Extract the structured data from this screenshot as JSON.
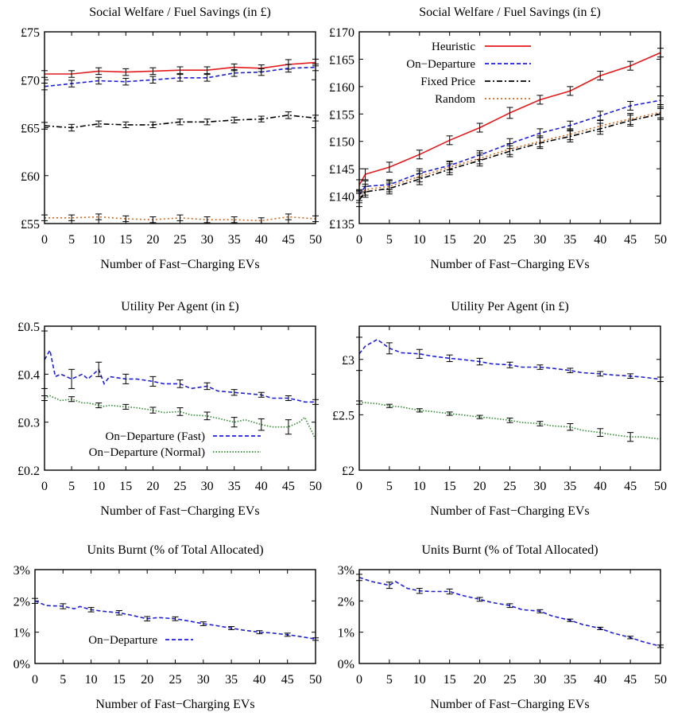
{
  "colors": {
    "heuristic": "#e41a1c",
    "on_departure": "#1f1fd6",
    "fixed_price": "#000000",
    "random": "#d2691e",
    "normal": "#2e8b2e"
  },
  "chart_data": [
    {
      "type": "line",
      "title": "Social Welfare / Fuel Savings (in £)",
      "xlabel": "Number of Fast−Charging EVs",
      "ylabel": "",
      "xlim": [
        0,
        50
      ],
      "ylim": [
        55,
        75
      ],
      "xticks": [
        0,
        5,
        10,
        15,
        20,
        25,
        30,
        35,
        40,
        45,
        50
      ],
      "yticks": [
        {
          "v": 55,
          "label": "£55"
        },
        {
          "v": 60,
          "label": "£60"
        },
        {
          "v": 65,
          "label": "£65"
        },
        {
          "v": 70,
          "label": "£70"
        },
        {
          "v": 75,
          "label": "£75"
        }
      ],
      "x": [
        0,
        5,
        10,
        15,
        20,
        25,
        30,
        35,
        40,
        45,
        50
      ],
      "series": [
        {
          "name": "Heuristic",
          "color": "#e41a1c",
          "dash": "",
          "values": [
            70.6,
            70.6,
            70.9,
            70.8,
            70.9,
            71.0,
            71.0,
            71.3,
            71.2,
            71.6,
            71.8
          ],
          "err": [
            0.35,
            0.35,
            0.35,
            0.35,
            0.35,
            0.35,
            0.35,
            0.35,
            0.35,
            0.5,
            0.35
          ]
        },
        {
          "name": "On−Departure",
          "color": "#1f1fd6",
          "dash": "5,3",
          "values": [
            69.3,
            69.6,
            69.9,
            69.8,
            70.0,
            70.2,
            70.2,
            70.7,
            70.8,
            71.2,
            71.3
          ],
          "err": [
            0.35,
            0.35,
            0.35,
            0.35,
            0.35,
            0.35,
            0.35,
            0.35,
            0.35,
            0.4,
            0.35
          ]
        },
        {
          "name": "Fixed Price",
          "color": "#000000",
          "dash": "7,3,2,3",
          "values": [
            65.2,
            65.0,
            65.4,
            65.3,
            65.3,
            65.6,
            65.6,
            65.8,
            65.9,
            66.3,
            66.0
          ],
          "err": [
            0.35,
            0.35,
            0.3,
            0.3,
            0.3,
            0.3,
            0.3,
            0.3,
            0.3,
            0.35,
            0.3
          ]
        },
        {
          "name": "Random",
          "color": "#d2691e",
          "dash": "2,3",
          "values": [
            55.6,
            55.6,
            55.7,
            55.5,
            55.4,
            55.6,
            55.4,
            55.4,
            55.3,
            55.7,
            55.5
          ],
          "err": [
            0.3,
            0.3,
            0.3,
            0.3,
            0.3,
            0.3,
            0.3,
            0.3,
            0.3,
            0.3,
            0.3
          ]
        }
      ],
      "legend": false
    },
    {
      "type": "line",
      "title": "Social Welfare / Fuel Savings (in £)",
      "xlabel": "Number of Fast−Charging EVs",
      "ylabel": "",
      "xlim": [
        0,
        50
      ],
      "ylim": [
        135,
        170
      ],
      "xticks": [
        0,
        5,
        10,
        15,
        20,
        25,
        30,
        35,
        40,
        45,
        50
      ],
      "yticks": [
        {
          "v": 135,
          "label": "£135"
        },
        {
          "v": 140,
          "label": "£140"
        },
        {
          "v": 145,
          "label": "£145"
        },
        {
          "v": 150,
          "label": "£150"
        },
        {
          "v": 155,
          "label": "£155"
        },
        {
          "v": 160,
          "label": "£160"
        },
        {
          "v": 165,
          "label": "£165"
        },
        {
          "v": 170,
          "label": "£170"
        }
      ],
      "x": [
        0,
        1,
        5,
        10,
        15,
        20,
        25,
        30,
        35,
        40,
        45,
        50
      ],
      "series": [
        {
          "name": "Heuristic",
          "color": "#e41a1c",
          "dash": "",
          "values": [
            142.0,
            144.0,
            145.3,
            147.6,
            150.2,
            152.5,
            155.2,
            157.6,
            159.2,
            162.0,
            163.8,
            166.2
          ],
          "err": [
            1.0,
            1.0,
            0.9,
            0.8,
            0.8,
            0.8,
            1.0,
            0.8,
            0.8,
            0.8,
            0.8,
            0.8
          ]
        },
        {
          "name": "On−Departure",
          "color": "#1f1fd6",
          "dash": "5,3",
          "values": [
            140.2,
            141.8,
            142.1,
            144.2,
            145.6,
            147.5,
            149.6,
            151.5,
            152.9,
            154.7,
            156.5,
            157.5
          ],
          "err": [
            1.0,
            1.0,
            0.9,
            0.8,
            0.8,
            0.8,
            0.9,
            0.8,
            0.8,
            0.8,
            0.8,
            0.8
          ]
        },
        {
          "name": "Fixed Price",
          "color": "#000000",
          "dash": "7,3,2,3",
          "values": [
            139.3,
            140.8,
            141.4,
            143.1,
            144.9,
            146.5,
            148.2,
            149.7,
            150.9,
            152.3,
            153.8,
            155.0
          ],
          "err": [
            1.2,
            1.0,
            1.0,
            1.0,
            1.0,
            1.0,
            1.0,
            1.0,
            1.0,
            1.0,
            1.0,
            1.0
          ]
        },
        {
          "name": "Random",
          "color": "#d2691e",
          "dash": "2,3",
          "values": [
            139.8,
            141.2,
            141.8,
            143.6,
            145.3,
            146.9,
            148.6,
            150.0,
            151.3,
            152.8,
            154.1,
            155.3
          ],
          "err": [
            1.0,
            1.0,
            1.0,
            1.0,
            1.0,
            1.0,
            1.0,
            1.0,
            1.0,
            1.0,
            1.0,
            1.0
          ]
        }
      ],
      "legend": true,
      "legend_position": "top-left",
      "legend_entries": [
        "Heuristic",
        "On−Departure",
        "Fixed Price",
        "Random"
      ]
    },
    {
      "type": "line",
      "title": "Utility Per Agent (in £)",
      "xlabel": "Number of Fast−Charging EVs",
      "ylabel": "",
      "xlim": [
        0,
        50
      ],
      "ylim": [
        0.2,
        0.5
      ],
      "xticks": [
        0,
        5,
        10,
        15,
        20,
        25,
        30,
        35,
        40,
        45,
        50
      ],
      "yticks": [
        {
          "v": 0.2,
          "label": "£0.2"
        },
        {
          "v": 0.3,
          "label": "£0.3"
        },
        {
          "v": 0.4,
          "label": "£0.4"
        },
        {
          "v": 0.5,
          "label": "£0.5"
        }
      ],
      "x": [
        0,
        1,
        2,
        3,
        5,
        7,
        8,
        10,
        11,
        12,
        15,
        17,
        20,
        22,
        25,
        27,
        30,
        32,
        35,
        37,
        40,
        42,
        45,
        47,
        48,
        50
      ],
      "series": [
        {
          "name": "On−Departure (Fast)",
          "color": "#1f1fd6",
          "dash": "5,3",
          "values": [
            0.43,
            0.45,
            0.395,
            0.4,
            0.39,
            0.4,
            0.39,
            0.41,
            0.38,
            0.395,
            0.39,
            0.39,
            0.385,
            0.38,
            0.38,
            0.37,
            0.375,
            0.365,
            0.362,
            0.36,
            0.357,
            0.35,
            0.35,
            0.345,
            0.342,
            0.342
          ],
          "err": [
            0.06,
            0.0,
            0.0,
            0.0,
            0.02,
            0.0,
            0.0,
            0.015,
            0.0,
            0.0,
            0.01,
            0.0,
            0.01,
            0.0,
            0.008,
            0.0,
            0.007,
            0.0,
            0.006,
            0.0,
            0.005,
            0.0,
            0.005,
            0.0,
            0.0,
            0.005
          ]
        },
        {
          "name": "On−Departure (Normal)",
          "color": "#2e8b2e",
          "dash": "1.5,2",
          "values": [
            0.35,
            0.355,
            0.35,
            0.345,
            0.348,
            0.34,
            0.34,
            0.335,
            0.333,
            0.335,
            0.332,
            0.33,
            0.325,
            0.32,
            0.322,
            0.315,
            0.313,
            0.308,
            0.3,
            0.305,
            0.295,
            0.29,
            0.29,
            0.3,
            0.31,
            0.265
          ],
          "err": [
            0.005,
            0.0,
            0.0,
            0.0,
            0.005,
            0.0,
            0.0,
            0.005,
            0.0,
            0.0,
            0.005,
            0.0,
            0.006,
            0.0,
            0.008,
            0.0,
            0.008,
            0.0,
            0.01,
            0.0,
            0.012,
            0.0,
            0.015,
            0.0,
            0.0,
            0.0
          ]
        }
      ],
      "legend": true,
      "legend_position": "bottom-left",
      "legend_entries": [
        "On−Departure (Fast)",
        "On−Departure (Normal)"
      ]
    },
    {
      "type": "line",
      "title": "Utility Per Agent (in £)",
      "xlabel": "Number of Fast−Charging EVs",
      "ylabel": "",
      "xlim": [
        0,
        50
      ],
      "ylim": [
        2,
        3.3
      ],
      "xticks": [
        0,
        5,
        10,
        15,
        20,
        25,
        30,
        35,
        40,
        45,
        50
      ],
      "yticks": [
        {
          "v": 2,
          "label": "£2"
        },
        {
          "v": 2.5,
          "label": "£2.5"
        },
        {
          "v": 3,
          "label": "£3"
        }
      ],
      "x": [
        0,
        1,
        3,
        5,
        7,
        10,
        12,
        15,
        17,
        20,
        22,
        25,
        27,
        30,
        32,
        35,
        37,
        40,
        42,
        45,
        47,
        50
      ],
      "series": [
        {
          "name": "On−Departure (Fast)",
          "color": "#1f1fd6",
          "dash": "5,3",
          "values": [
            3.05,
            3.12,
            3.18,
            3.1,
            3.06,
            3.05,
            3.03,
            3.01,
            3.0,
            2.98,
            2.96,
            2.95,
            2.93,
            2.93,
            2.92,
            2.9,
            2.88,
            2.87,
            2.86,
            2.85,
            2.84,
            2.82
          ],
          "err": [
            0.15,
            0.0,
            0.0,
            0.05,
            0.0,
            0.04,
            0.0,
            0.03,
            0.0,
            0.03,
            0.0,
            0.025,
            0.0,
            0.02,
            0.0,
            0.02,
            0.0,
            0.02,
            0.0,
            0.02,
            0.0,
            0.02
          ]
        },
        {
          "name": "On−Departure (Normal)",
          "color": "#2e8b2e",
          "dash": "1.5,2",
          "values": [
            2.61,
            2.61,
            2.6,
            2.58,
            2.57,
            2.54,
            2.53,
            2.51,
            2.5,
            2.48,
            2.47,
            2.45,
            2.43,
            2.42,
            2.4,
            2.39,
            2.36,
            2.34,
            2.32,
            2.3,
            2.3,
            2.28
          ],
          "err": [
            0.015,
            0.0,
            0.0,
            0.015,
            0.0,
            0.015,
            0.0,
            0.015,
            0.0,
            0.015,
            0.0,
            0.02,
            0.0,
            0.02,
            0.0,
            0.03,
            0.0,
            0.035,
            0.0,
            0.04,
            0.0,
            0.0
          ]
        }
      ],
      "legend": false
    },
    {
      "type": "line",
      "title": "Units Burnt (% of Total Allocated)",
      "xlabel": "Number of Fast−Charging EVs",
      "ylabel": "",
      "xlim": [
        0,
        50
      ],
      "ylim": [
        0,
        3
      ],
      "xticks": [
        0,
        5,
        10,
        15,
        20,
        25,
        30,
        35,
        40,
        45,
        50
      ],
      "yticks": [
        {
          "v": 0,
          "label": "0%"
        },
        {
          "v": 1,
          "label": "1%"
        },
        {
          "v": 2,
          "label": "2%"
        },
        {
          "v": 3,
          "label": "3%"
        }
      ],
      "x": [
        0,
        2,
        5,
        7,
        8,
        10,
        12,
        15,
        17,
        20,
        22,
        25,
        27,
        30,
        32,
        35,
        37,
        40,
        42,
        45,
        47,
        50
      ],
      "series": [
        {
          "name": "On−Departure",
          "color": "#1f1fd6",
          "dash": "5,3",
          "values": [
            2.0,
            1.85,
            1.83,
            1.75,
            1.82,
            1.72,
            1.67,
            1.62,
            1.55,
            1.43,
            1.47,
            1.43,
            1.37,
            1.27,
            1.22,
            1.13,
            1.07,
            1.0,
            0.98,
            0.92,
            0.87,
            0.78
          ],
          "err": [
            0.08,
            0.0,
            0.08,
            0.0,
            0.0,
            0.07,
            0.0,
            0.07,
            0.0,
            0.07,
            0.0,
            0.06,
            0.0,
            0.06,
            0.0,
            0.05,
            0.0,
            0.05,
            0.0,
            0.05,
            0.0,
            0.04
          ]
        }
      ],
      "legend": true,
      "legend_position": "bottom-left",
      "legend_entries": [
        "On−Departure"
      ]
    },
    {
      "type": "line",
      "title": "Units Burnt (% of Total Allocated)",
      "xlabel": "Number of Fast−Charging EVs",
      "ylabel": "",
      "xlim": [
        0,
        50
      ],
      "ylim": [
        0,
        3
      ],
      "xticks": [
        0,
        5,
        10,
        15,
        20,
        25,
        30,
        35,
        40,
        45,
        50
      ],
      "yticks": [
        {
          "v": 0,
          "label": "0%"
        },
        {
          "v": 1,
          "label": "1%"
        },
        {
          "v": 2,
          "label": "2%"
        },
        {
          "v": 3,
          "label": "3%"
        }
      ],
      "x": [
        0,
        2,
        5,
        6,
        8,
        10,
        12,
        15,
        17,
        20,
        22,
        25,
        27,
        30,
        32,
        35,
        37,
        40,
        42,
        45,
        47,
        50
      ],
      "series": [
        {
          "name": "On−Departure",
          "color": "#1f1fd6",
          "dash": "5,3",
          "values": [
            2.75,
            2.62,
            2.5,
            2.62,
            2.4,
            2.32,
            2.3,
            2.3,
            2.18,
            2.05,
            1.95,
            1.85,
            1.72,
            1.67,
            1.52,
            1.38,
            1.25,
            1.12,
            0.98,
            0.83,
            0.7,
            0.55
          ],
          "err": [
            0.1,
            0.0,
            0.1,
            0.0,
            0.0,
            0.08,
            0.0,
            0.08,
            0.0,
            0.06,
            0.0,
            0.06,
            0.0,
            0.05,
            0.0,
            0.04,
            0.0,
            0.04,
            0.0,
            0.04,
            0.0,
            0.04
          ]
        }
      ],
      "legend": false
    }
  ]
}
